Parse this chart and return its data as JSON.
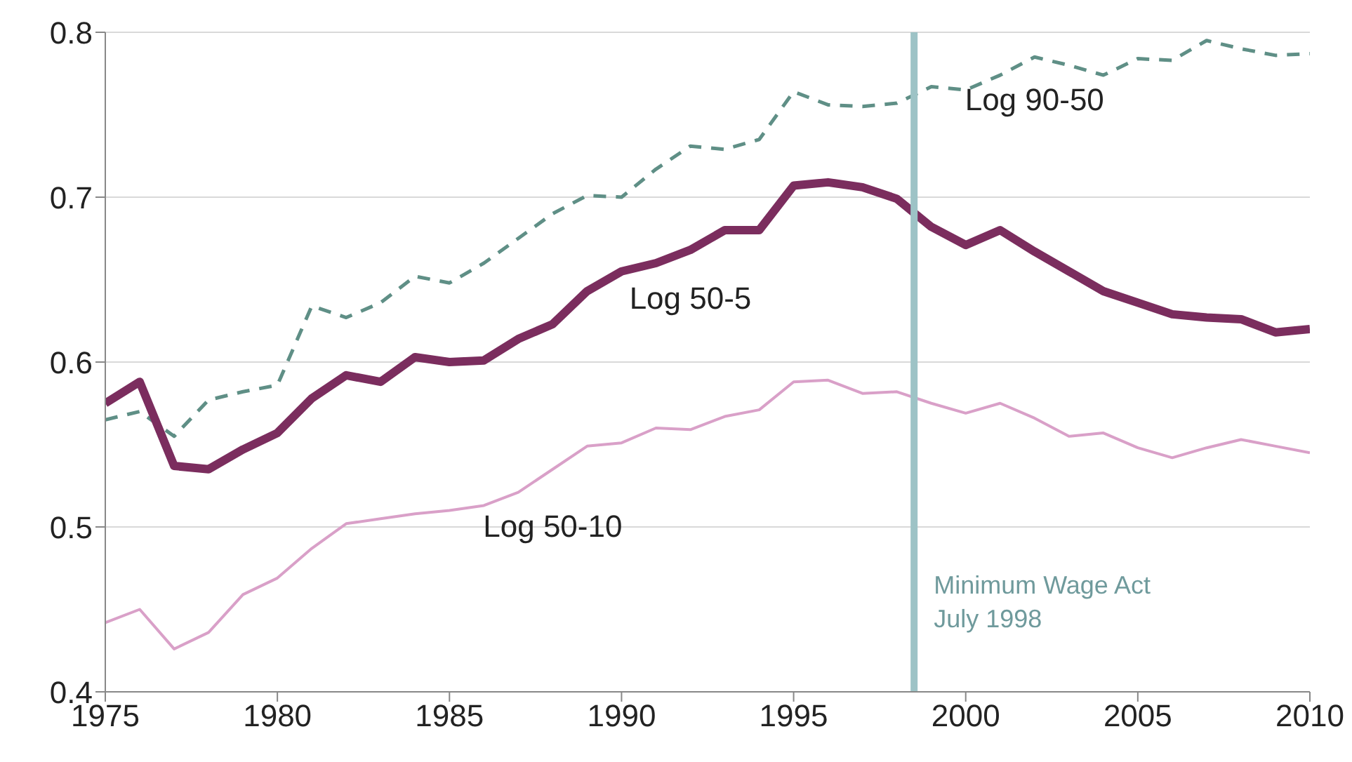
{
  "chart_data": {
    "type": "line",
    "x": [
      1975,
      1976,
      1977,
      1978,
      1979,
      1980,
      1981,
      1982,
      1983,
      1984,
      1985,
      1986,
      1987,
      1988,
      1989,
      1990,
      1991,
      1992,
      1993,
      1994,
      1995,
      1996,
      1997,
      1998,
      1999,
      2000,
      2001,
      2002,
      2003,
      2004,
      2005,
      2006,
      2007,
      2008,
      2009,
      2010
    ],
    "series": [
      {
        "name": "Log 90-50",
        "color": "#5f8f86",
        "line_style": "dashed",
        "values": [
          0.565,
          0.57,
          0.555,
          0.577,
          0.582,
          0.586,
          0.634,
          0.627,
          0.636,
          0.652,
          0.648,
          0.66,
          0.675,
          0.69,
          0.701,
          0.7,
          0.717,
          0.731,
          0.729,
          0.735,
          0.764,
          0.756,
          0.755,
          0.757,
          0.767,
          0.765,
          0.774,
          0.785,
          0.78,
          0.774,
          0.784,
          0.783,
          0.795,
          0.79,
          0.786,
          0.787
        ]
      },
      {
        "name": "Log 50-5",
        "color": "#7b2d5e",
        "line_style": "solid",
        "values": [
          0.575,
          0.588,
          0.537,
          0.535,
          0.547,
          0.557,
          0.578,
          0.592,
          0.588,
          0.603,
          0.6,
          0.601,
          0.614,
          0.623,
          0.643,
          0.655,
          0.66,
          0.668,
          0.68,
          0.68,
          0.707,
          0.709,
          0.706,
          0.699,
          0.682,
          0.671,
          0.68,
          0.667,
          0.655,
          0.643,
          0.636,
          0.629,
          0.627,
          0.626,
          0.618,
          0.62
        ]
      },
      {
        "name": "Log 50-10",
        "color": "#d9a0c8",
        "line_style": "solid",
        "values": [
          0.442,
          0.45,
          0.426,
          0.436,
          0.459,
          0.469,
          0.487,
          0.502,
          0.505,
          0.508,
          0.51,
          0.513,
          0.521,
          0.535,
          0.549,
          0.551,
          0.56,
          0.559,
          0.567,
          0.571,
          0.588,
          0.589,
          0.581,
          0.582,
          0.575,
          0.569,
          0.575,
          0.566,
          0.555,
          0.557,
          0.548,
          0.542,
          0.548,
          0.553,
          0.549,
          0.545
        ]
      }
    ],
    "xlim": [
      1975,
      2010
    ],
    "xticks": [
      1975,
      1980,
      1985,
      1990,
      1995,
      2000,
      2005,
      2010
    ],
    "ylim": [
      0.4,
      0.8
    ],
    "yticks": [
      0.4,
      0.5,
      0.6,
      0.7,
      0.8
    ],
    "ref_lines": [
      {
        "axis": "x",
        "value": 1998.5,
        "label": "Minimum Wage Act\nJuly 1998",
        "color": "#9dc3c6"
      }
    ],
    "grid": "y",
    "legend": false,
    "marker": "none"
  }
}
